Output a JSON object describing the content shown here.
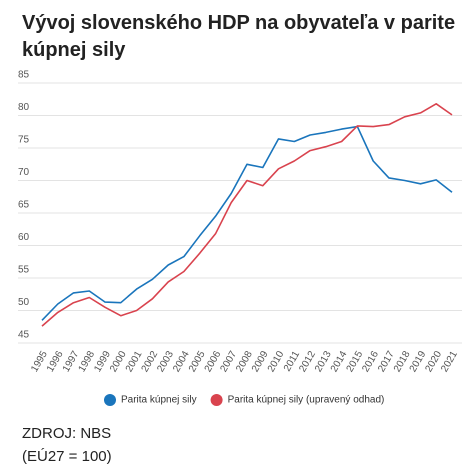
{
  "chart_data": {
    "type": "line",
    "title_lines": [
      "Vývoj slovenského HDP na obyvateľa v parite",
      "kúpnej sily"
    ],
    "categories": [
      "1995",
      "1996",
      "1997",
      "1998",
      "1999",
      "2000",
      "2001",
      "2002",
      "2003",
      "2004",
      "2005",
      "2006",
      "2007",
      "2008",
      "2009",
      "2010",
      "2011",
      "2012",
      "2013",
      "2014",
      "2015",
      "2016",
      "2017",
      "2018",
      "2019",
      "2020",
      "2021"
    ],
    "series": [
      {
        "name": "Parita kúpnej sily",
        "color": "#1a75bc",
        "values": [
          48.5,
          51,
          52.7,
          53,
          51.3,
          51.2,
          53.3,
          54.8,
          57,
          58.3,
          61.5,
          64.5,
          68,
          72.5,
          72,
          76.4,
          76,
          77,
          77.4,
          77.9,
          78.3,
          73,
          70.4,
          70,
          69.5,
          70.1,
          68.2
        ]
      },
      {
        "name": "Parita kúpnej sily (upravený odhad)",
        "color": "#d9434e",
        "values": [
          47.6,
          49.7,
          51.2,
          52,
          50.5,
          49.2,
          50,
          51.8,
          54.4,
          56,
          58.8,
          61.8,
          66.6,
          70,
          69.2,
          71.8,
          73,
          74.6,
          75.2,
          76,
          78.4,
          78.3,
          78.6,
          79.8,
          80.4,
          81.8,
          80.1
        ]
      }
    ],
    "ylim": [
      45,
      85
    ],
    "yticks": [
      45,
      50,
      55,
      60,
      65,
      70,
      75,
      80,
      85
    ],
    "grid": true,
    "source": "ZDROJ: NBS",
    "note": "(EÚ27 = 100)"
  }
}
